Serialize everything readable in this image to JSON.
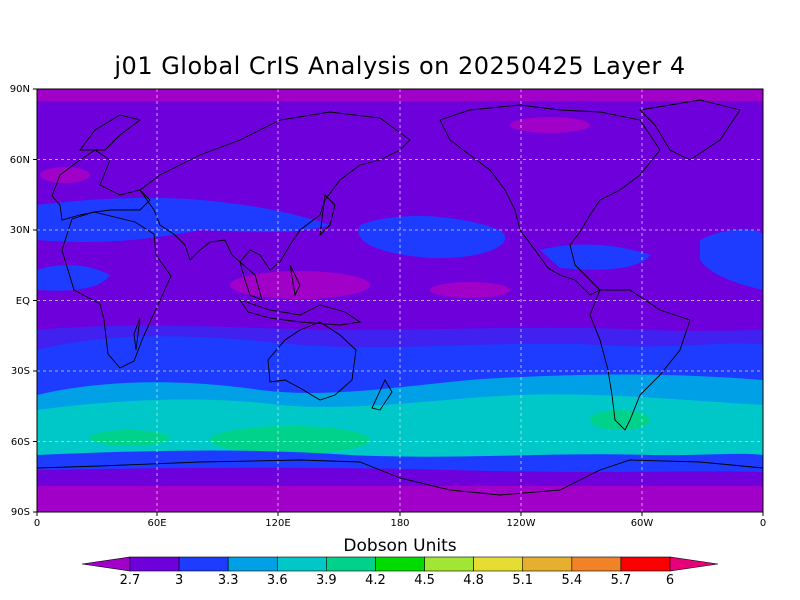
{
  "title": "j01 Global CrIS Analysis on 20250425 Layer 4",
  "map": {
    "y_ticks": [
      "90N",
      "60N",
      "30N",
      "EQ",
      "30S",
      "60S",
      "90S"
    ],
    "x_ticks": [
      "0",
      "60E",
      "120E",
      "180",
      "120W",
      "60W",
      "0"
    ],
    "grid_lines": "dotted",
    "projection": "equirectangular"
  },
  "colorbar": {
    "title": "Dobson Units",
    "labels": [
      "2.7",
      "3",
      "3.3",
      "3.6",
      "3.9",
      "4.2",
      "4.5",
      "4.8",
      "5.1",
      "5.4",
      "5.7",
      "6"
    ],
    "colors": [
      "#a000c8",
      "#6e00dc",
      "#1e3cff",
      "#00a0e6",
      "#00c8c8",
      "#00d28c",
      "#00dc00",
      "#a0e632",
      "#e6dc32",
      "#e6af2d",
      "#f08228",
      "#fa0000",
      "#e6007a"
    ]
  },
  "chart_data": {
    "type": "heatmap",
    "title": "j01 Global CrIS Analysis on 20250425 Layer 4",
    "units": "Dobson Units",
    "levels": [
      2.7,
      3,
      3.3,
      3.6,
      3.9,
      4.2,
      4.5,
      4.8,
      5.1,
      5.4,
      5.7,
      6
    ],
    "xlim": [
      0,
      360
    ],
    "ylim": [
      -90,
      90
    ],
    "zonal_profile": [
      {
        "lat": 85,
        "du": 2.75
      },
      {
        "lat": 60,
        "du": 2.9
      },
      {
        "lat": 30,
        "du": 3.05
      },
      {
        "lat": 15,
        "du": 2.95
      },
      {
        "lat": 0,
        "du": 2.9
      },
      {
        "lat": -15,
        "du": 3.1
      },
      {
        "lat": -30,
        "du": 3.25
      },
      {
        "lat": -42,
        "du": 3.55
      },
      {
        "lat": -52,
        "du": 3.85
      },
      {
        "lat": -58,
        "du": 3.95
      },
      {
        "lat": -66,
        "du": 3.2
      },
      {
        "lat": -72,
        "du": 2.85
      },
      {
        "lat": -85,
        "du": 2.6
      }
    ]
  }
}
